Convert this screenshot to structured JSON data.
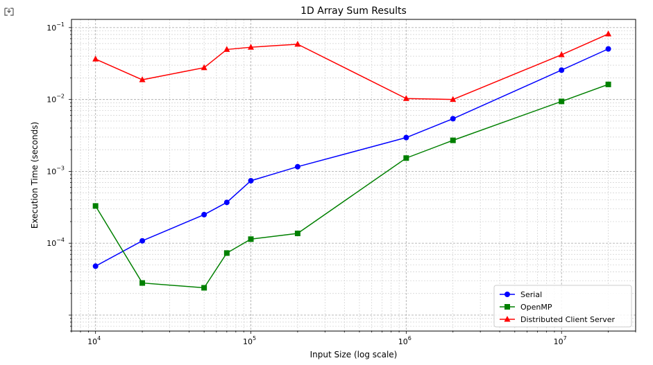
{
  "notebook": {
    "output_icon": "output-toggle-icon"
  },
  "chart_data": {
    "type": "line",
    "title": "1D Array Sum Results",
    "xlabel": "Input Size (log scale)",
    "ylabel": "Execution Time (seconds)",
    "xscale": "log",
    "yscale": "log",
    "xlim": [
      7000,
      30000000
    ],
    "ylim": [
      6e-06,
      0.13
    ],
    "grid": true,
    "legend_position": "lower-right",
    "x_ticks": [
      {
        "value": 10000,
        "base": "10",
        "exp": "4"
      },
      {
        "value": 100000,
        "base": "10",
        "exp": "5"
      },
      {
        "value": 1000000,
        "base": "10",
        "exp": "6"
      },
      {
        "value": 10000000,
        "base": "10",
        "exp": "7"
      }
    ],
    "y_ticks": [
      {
        "value": 0.0001,
        "base": "10",
        "exp": "−4"
      },
      {
        "value": 0.001,
        "base": "10",
        "exp": "−3"
      },
      {
        "value": 0.01,
        "base": "10",
        "exp": "−2"
      },
      {
        "value": 0.1,
        "base": "10",
        "exp": "−1"
      }
    ],
    "x": [
      10000,
      20000,
      50000,
      70000,
      100000,
      200000,
      1000000,
      2000000,
      10000000,
      20000000
    ],
    "series": [
      {
        "name": "Serial",
        "color": "#0000ff",
        "marker": "circle",
        "values": [
          4.8e-05,
          0.000108,
          0.00025,
          0.00037,
          0.00074,
          0.00116,
          0.00295,
          0.0054,
          0.0256,
          0.0505
        ]
      },
      {
        "name": "OpenMP",
        "color": "#008000",
        "marker": "square",
        "values": [
          0.00033,
          2.8e-05,
          2.4e-05,
          7.3e-05,
          0.000114,
          0.000137,
          0.00153,
          0.0027,
          0.0094,
          0.0162
        ]
      },
      {
        "name": "Distributed Client Server",
        "color": "#ff0000",
        "marker": "triangle",
        "values": [
          0.0365,
          0.0188,
          0.0277,
          0.0496,
          0.0533,
          0.0587,
          0.0103,
          0.01,
          0.0419,
          0.0815
        ]
      }
    ]
  }
}
